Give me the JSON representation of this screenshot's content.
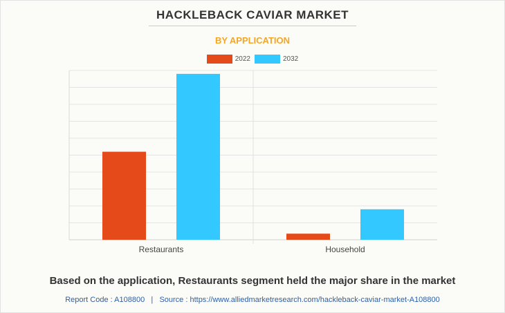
{
  "header": {
    "title": "HACKLEBACK CAVIAR MARKET",
    "subtitle": "BY APPLICATION",
    "subtitle_color": "#f5a623"
  },
  "chart_data": {
    "type": "bar",
    "categories": [
      "Restaurants",
      "Household"
    ],
    "series": [
      {
        "name": "2022",
        "color": "#e44a1a",
        "values": [
          13,
          0.9
        ]
      },
      {
        "name": "2032",
        "color": "#33c8ff",
        "values": [
          24.5,
          4.5
        ]
      }
    ],
    "ylim": [
      0,
      25
    ],
    "grid": true,
    "legend_position": "top-center",
    "xlabel": "",
    "ylabel": ""
  },
  "footer": {
    "caption": "Based on the application, Restaurants segment held the major share in the market",
    "report_code_label": "Report Code : A108800",
    "separator": "|",
    "source_label": "Source : https://www.alliedmarketresearch.com/hackleback-caviar-market-A108800"
  }
}
